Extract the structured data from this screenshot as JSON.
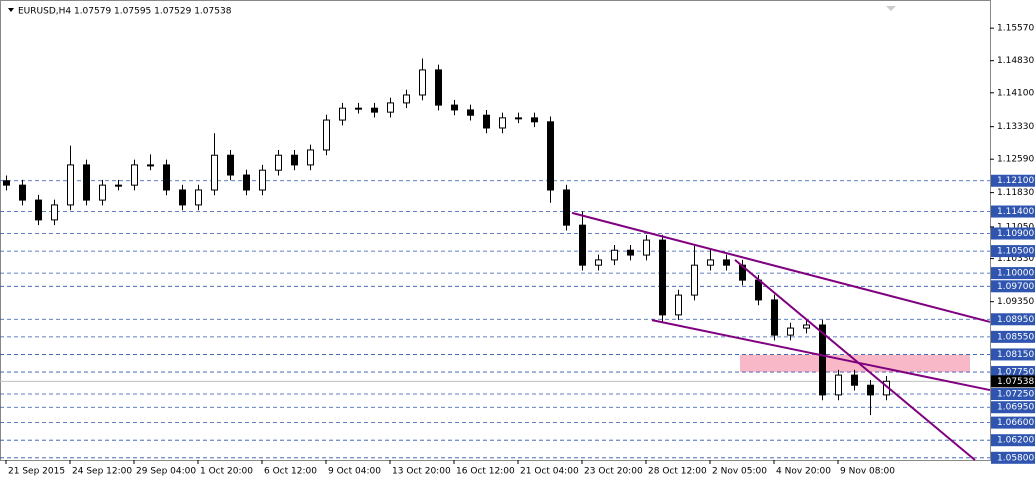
{
  "chart_data": {
    "type": "candlestick",
    "header": "EURUSD,H4  1.07579 1.07595 1.07529 1.07538",
    "categories": [
      "21 Sep 2015",
      null,
      null,
      null,
      "24 Sep 12:00",
      null,
      null,
      null,
      "29 Sep 04:00",
      null,
      null,
      null,
      "1 Oct 20:00",
      null,
      null,
      null,
      "6 Oct 12:00",
      null,
      null,
      null,
      "9 Oct 04:00",
      null,
      null,
      null,
      "13 Oct 20:00",
      null,
      null,
      null,
      "16 Oct 12:00",
      null,
      null,
      null,
      "21 Oct 04:00",
      null,
      null,
      null,
      "23 Oct 20:00",
      null,
      null,
      null,
      "28 Oct 12:00",
      null,
      null,
      null,
      "2 Nov 05:00",
      null,
      null,
      null,
      "4 Nov 20:00",
      null,
      null,
      null,
      "9 Nov 08:00",
      null,
      null,
      null
    ],
    "open": [
      1.121,
      1.12,
      1.1166,
      1.1121,
      1.1155,
      1.1246,
      1.1166,
      1.12,
      1.12,
      1.1246,
      1.1246,
      1.1189,
      1.1155,
      1.1189,
      1.1268,
      1.1223,
      1.1189,
      1.1234,
      1.1268,
      1.1246,
      1.128,
      1.1348,
      1.1375,
      1.1375,
      1.1366,
      1.1387,
      1.1405,
      1.1462,
      1.1382,
      1.1371,
      1.1359,
      1.133,
      1.1353,
      1.1353,
      1.1344,
      1.1189,
      1.1109,
      1.1018,
      1.103,
      1.1052,
      1.1041,
      1.1075,
      1.0905,
      1.095,
      1.1018,
      1.103,
      1.1018,
      1.0984,
      1.0939,
      1.0859,
      1.0875,
      1.0882,
      1.0723,
      1.0768,
      1.0745,
      1.0723
    ],
    "high": [
      1.1222,
      1.1212,
      1.1178,
      1.1167,
      1.129,
      1.1258,
      1.1212,
      1.1212,
      1.1258,
      1.127,
      1.1258,
      1.1201,
      1.1201,
      1.1318,
      1.128,
      1.1235,
      1.1246,
      1.128,
      1.128,
      1.1292,
      1.136,
      1.1387,
      1.1387,
      1.1387,
      1.1399,
      1.1417,
      1.1488,
      1.1474,
      1.1394,
      1.1383,
      1.1371,
      1.1365,
      1.1365,
      1.1365,
      1.1356,
      1.1201,
      1.114,
      1.1042,
      1.1064,
      1.1064,
      1.1087,
      1.1087,
      1.0962,
      1.1062,
      1.1055,
      1.1042,
      1.103,
      1.0996,
      1.0951,
      1.0887,
      1.0894,
      1.0894,
      1.078,
      1.078,
      1.0757,
      1.0766
    ],
    "low": [
      1.1188,
      1.1154,
      1.1109,
      1.1109,
      1.1143,
      1.1154,
      1.1154,
      1.1188,
      1.1188,
      1.1234,
      1.1177,
      1.1143,
      1.1143,
      1.1177,
      1.1211,
      1.1177,
      1.1177,
      1.1222,
      1.1234,
      1.1234,
      1.1268,
      1.1336,
      1.1363,
      1.1354,
      1.1354,
      1.1375,
      1.1393,
      1.137,
      1.1359,
      1.1347,
      1.1318,
      1.1318,
      1.1341,
      1.1332,
      1.116,
      1.1097,
      1.1006,
      1.1006,
      1.1018,
      1.1029,
      1.1029,
      1.089,
      1.0893,
      1.0938,
      1.1006,
      1.1006,
      1.0972,
      1.0927,
      1.0847,
      1.0847,
      1.0863,
      1.0711,
      1.0711,
      1.0733,
      1.0677,
      1.0711
    ],
    "close": [
      1.12,
      1.1166,
      1.1121,
      1.1155,
      1.1246,
      1.1166,
      1.12,
      1.12,
      1.1246,
      1.1246,
      1.1189,
      1.1155,
      1.1189,
      1.1268,
      1.1223,
      1.1189,
      1.1234,
      1.1268,
      1.1246,
      1.128,
      1.1348,
      1.1375,
      1.1375,
      1.1366,
      1.1387,
      1.1405,
      1.1462,
      1.1382,
      1.1371,
      1.1359,
      1.133,
      1.1353,
      1.1353,
      1.1344,
      1.1189,
      1.1109,
      1.1018,
      1.103,
      1.1052,
      1.1041,
      1.1075,
      1.0905,
      1.095,
      1.1018,
      1.103,
      1.1018,
      1.0984,
      1.0939,
      1.0859,
      1.0875,
      1.0882,
      1.0723,
      1.0768,
      1.0745,
      1.0723,
      1.0754
    ],
    "up_color": "#ffffff",
    "down_color": "#000000",
    "xlim": [
      -0.375,
      61.5
    ],
    "ylim": [
      1.0575,
      1.1621
    ],
    "yticks": [
      {
        "value": 1.1557,
        "label": "1.15570"
      },
      {
        "value": 1.1483,
        "label": "1.14830"
      },
      {
        "value": 1.141,
        "label": "1.14100"
      },
      {
        "value": 1.1333,
        "label": "1.13330"
      },
      {
        "value": 1.1259,
        "label": "1.12590"
      },
      {
        "value": 1.1183,
        "label": "1.11830"
      },
      {
        "value": 1.1105,
        "label": "1.11050"
      },
      {
        "value": 1.1033,
        "label": "1.10330"
      },
      {
        "value": 1.0935,
        "label": "1.09350"
      }
    ],
    "levels": [
      {
        "value": 1.121,
        "label": "1.12100"
      },
      {
        "value": 1.114,
        "label": "1.11400"
      },
      {
        "value": 1.109,
        "label": "1.10900"
      },
      {
        "value": 1.105,
        "label": "1.10500"
      },
      {
        "value": 1.1,
        "label": "1.10000"
      },
      {
        "value": 1.097,
        "label": "1.09700"
      },
      {
        "value": 1.0895,
        "label": "1.08950"
      },
      {
        "value": 1.0855,
        "label": "1.08550"
      },
      {
        "value": 1.0815,
        "label": "1.08150"
      },
      {
        "value": 1.0775,
        "label": "1.07750"
      },
      {
        "value": 1.0725,
        "label": "1.07250"
      },
      {
        "value": 1.0695,
        "label": "1.06950"
      },
      {
        "value": 1.066,
        "label": "1.06600"
      },
      {
        "value": 1.062,
        "label": "1.06200"
      },
      {
        "value": 1.058,
        "label": "1.05800"
      }
    ],
    "level_color": "#2f55b0",
    "current_price": {
      "value": 1.07538,
      "label": "1.07538"
    },
    "trendline_color": "#800080",
    "trendlines": [
      {
        "x": [
          35.375,
          61.5
        ],
        "y": [
          1.1137,
          1.0889
        ]
      },
      {
        "x": [
          40.375,
          61.5
        ],
        "y": [
          1.0893,
          1.0734
        ]
      },
      {
        "x": [
          45.56,
          60.56
        ],
        "y": [
          1.103,
          1.0575
        ]
      }
    ],
    "zone": {
      "x": [
        45.875,
        60.25
      ],
      "y": [
        1.0814,
        1.0775
      ],
      "color": "#f8b8c8"
    }
  }
}
